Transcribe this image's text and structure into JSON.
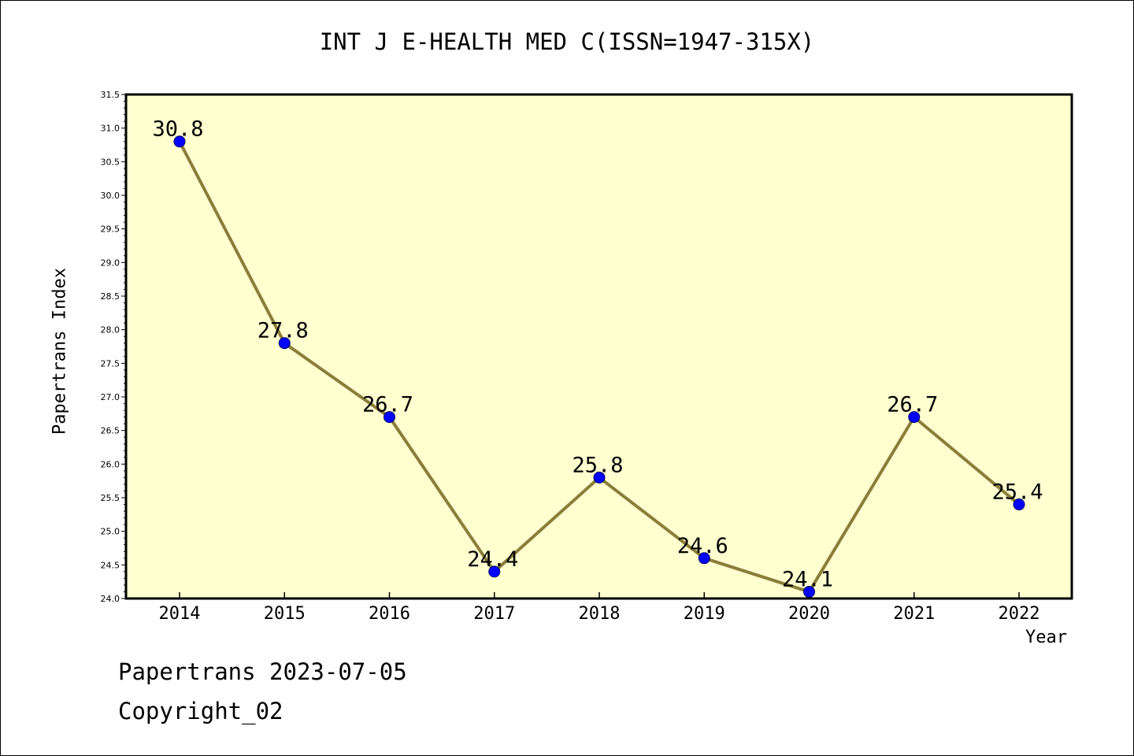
{
  "title": "INT J E-HEALTH MED C(ISSN=1947-315X)",
  "footer": {
    "line1": "Papertrans 2023-07-05",
    "line2": "Copyright_02"
  },
  "colors": {
    "plot_background": "#ffffd0",
    "line": "#8b7d3a",
    "marker": "#0000ff"
  },
  "chart_data": {
    "type": "line",
    "title": "INT J E-HEALTH MED C(ISSN=1947-315X)",
    "xlabel": "Year",
    "ylabel": "Papertrans Index",
    "categories": [
      "2014",
      "2015",
      "2016",
      "2017",
      "2018",
      "2019",
      "2020",
      "2021",
      "2022"
    ],
    "values": [
      30.8,
      27.8,
      26.7,
      24.4,
      25.8,
      24.6,
      24.1,
      26.7,
      25.4
    ],
    "data_labels": [
      "30.8",
      "27.8",
      "26.7",
      "24.4",
      "25.8",
      "24.6",
      "24.1",
      "26.7",
      "25.4"
    ],
    "ylim": [
      24.0,
      31.5
    ],
    "yticks": [
      "24.0",
      "24.5",
      "25.0",
      "25.5",
      "26.0",
      "26.5",
      "27.0",
      "27.5",
      "28.0",
      "28.5",
      "29.0",
      "29.5",
      "30.0",
      "30.5",
      "31.0",
      "31.5"
    ],
    "grid": false
  }
}
